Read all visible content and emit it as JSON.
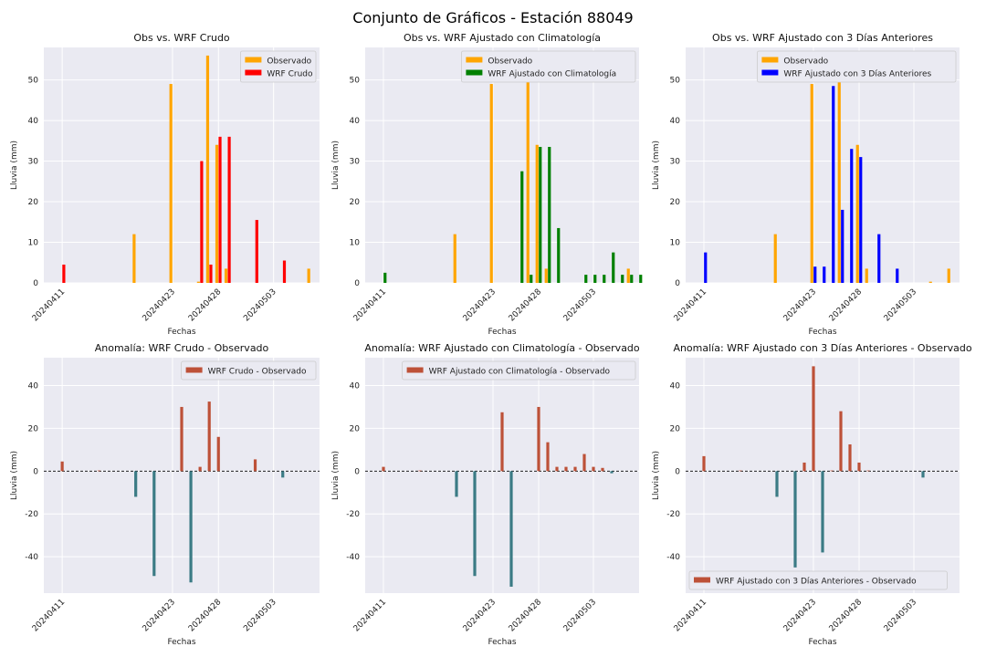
{
  "figure": {
    "title": "Conjunto de Gráficos - Estación 88049"
  },
  "colors": {
    "background": "#eaeaf2",
    "grid": "#ffffff",
    "observado": "#ffa500",
    "crudo": "#ff0000",
    "climatologia": "#008000",
    "tres_dias": "#0000ff",
    "anomaly_positive": "#bd5138",
    "anomaly_negative": "#3b7b85"
  },
  "chart_data": [
    {
      "type": "bar",
      "title": "Obs vs. WRF Crudo",
      "xlabel": "Fechas",
      "ylabel": "Lluvia (mm)",
      "ylim": [
        0,
        58
      ],
      "yticks": [
        0,
        10,
        20,
        30,
        40,
        50
      ],
      "xticks": [
        "20240411",
        "20240423",
        "20240428",
        "20240503"
      ],
      "legend_position": "upper right",
      "series": [
        {
          "name": "Observado",
          "color_key": "observado",
          "offset": -1,
          "points": [
            [
              "20240419",
              12
            ],
            [
              "20240423",
              49
            ],
            [
              "20240426",
              0.3
            ],
            [
              "20240427",
              56
            ],
            [
              "20240428",
              34
            ],
            [
              "20240429",
              3.5
            ],
            [
              "20240507",
              3.5
            ]
          ]
        },
        {
          "name": "WRF Crudo",
          "color_key": "crudo",
          "offset": 1,
          "points": [
            [
              "20240411",
              4.5
            ],
            [
              "20240426",
              30
            ],
            [
              "20240427",
              4.5
            ],
            [
              "20240428",
              36
            ],
            [
              "20240429",
              36
            ],
            [
              "20240501",
              15.5
            ],
            [
              "20240504",
              5.5
            ]
          ]
        }
      ]
    },
    {
      "type": "bar",
      "title": "Obs vs. WRF Ajustado con Climatología",
      "xlabel": "Fechas",
      "ylabel": "Lluvia (mm)",
      "ylim": [
        0,
        58
      ],
      "yticks": [
        0,
        10,
        20,
        30,
        40,
        50
      ],
      "xticks": [
        "20240411",
        "20240423",
        "20240428",
        "20240503"
      ],
      "legend_position": "upper right",
      "series": [
        {
          "name": "Observado",
          "color_key": "observado",
          "offset": -1,
          "points": [
            [
              "20240419",
              12
            ],
            [
              "20240423",
              49
            ],
            [
              "20240427",
              56
            ],
            [
              "20240428",
              34
            ],
            [
              "20240429",
              3.5
            ],
            [
              "20240507",
              3.5
            ]
          ]
        },
        {
          "name": "WRF Ajustado con Climatología",
          "color_key": "climatologia",
          "offset": 1,
          "points": [
            [
              "20240411",
              2.5
            ],
            [
              "20240426",
              27.5
            ],
            [
              "20240427",
              2
            ],
            [
              "20240428",
              33.5
            ],
            [
              "20240429",
              33.5
            ],
            [
              "20240430",
              13.5
            ],
            [
              "20240502",
              2
            ],
            [
              "20240503",
              2
            ],
            [
              "20240504",
              2
            ],
            [
              "20240505",
              7.5
            ],
            [
              "20240506",
              2
            ],
            [
              "20240507",
              2
            ],
            [
              "20240508",
              2
            ]
          ]
        }
      ]
    },
    {
      "type": "bar",
      "title": "Obs vs. WRF Ajustado con 3 Días Anteriores",
      "xlabel": "Fechas",
      "ylabel": "Lluvia (mm)",
      "ylim": [
        0,
        58
      ],
      "yticks": [
        0,
        10,
        20,
        30,
        40,
        50
      ],
      "xticks": [
        "20240411",
        "20240423",
        "20240428",
        "20240503"
      ],
      "legend_position": "upper right",
      "series": [
        {
          "name": "Observado",
          "color_key": "observado",
          "offset": -1,
          "points": [
            [
              "20240419",
              12
            ],
            [
              "20240423",
              49
            ],
            [
              "20240426",
              56
            ],
            [
              "20240428",
              34
            ],
            [
              "20240429",
              3.5
            ],
            [
              "20240505",
              0.3
            ],
            [
              "20240507",
              3.5
            ]
          ]
        },
        {
          "name": "WRF Ajustado con 3 Días Anteriores",
          "color_key": "tres_dias",
          "offset": 1,
          "points": [
            [
              "20240411",
              7.5
            ],
            [
              "20240423",
              4
            ],
            [
              "20240424",
              4
            ],
            [
              "20240425",
              48.5
            ],
            [
              "20240426",
              18
            ],
            [
              "20240427",
              33
            ],
            [
              "20240428",
              31
            ],
            [
              "20240430",
              12
            ],
            [
              "20240501",
              3.5
            ]
          ]
        }
      ]
    },
    {
      "type": "bar",
      "title": "Anomalía: WRF Crudo - Observado",
      "xlabel": "Fechas",
      "ylabel": "Lluvia (mm)",
      "ylim": [
        -57,
        53
      ],
      "yticks": [
        -40,
        -20,
        0,
        20,
        40
      ],
      "xticks": [
        "20240411",
        "20240423",
        "20240428",
        "20240503"
      ],
      "legend_position": "upper right",
      "zero_line": true,
      "series": [
        {
          "name": "WRF Crudo - Observado",
          "points": [
            [
              "20240411",
              4.5
            ],
            [
              "20240415",
              0.3
            ],
            [
              "20240419",
              -12
            ],
            [
              "20240421",
              -49
            ],
            [
              "20240424",
              30
            ],
            [
              "20240425",
              -52
            ],
            [
              "20240426",
              2
            ],
            [
              "20240427",
              32.5
            ],
            [
              "20240428",
              16
            ],
            [
              "20240432",
              5.5
            ],
            [
              "20240435",
              -3
            ]
          ]
        }
      ]
    },
    {
      "type": "bar",
      "title": "Anomalía: WRF Ajustado con Climatología - Observado",
      "xlabel": "Fechas",
      "ylabel": "Lluvia (mm)",
      "ylim": [
        -57,
        53
      ],
      "yticks": [
        -40,
        -20,
        0,
        20,
        40
      ],
      "xticks": [
        "20240411",
        "20240423",
        "20240428",
        "20240503"
      ],
      "legend_position": "upper right",
      "zero_line": true,
      "series": [
        {
          "name": "WRF Ajustado con Climatología - Observado",
          "points": [
            [
              "20240411",
              2
            ],
            [
              "20240415",
              0.3
            ],
            [
              "20240419",
              -12
            ],
            [
              "20240421",
              -49
            ],
            [
              "20240424",
              27.5
            ],
            [
              "20240425",
              -54
            ],
            [
              "20240428",
              30
            ],
            [
              "20240429",
              13.5
            ],
            [
              "20240430",
              2
            ],
            [
              "20240431",
              2
            ],
            [
              "20240432",
              2
            ],
            [
              "20240433",
              8
            ],
            [
              "20240434",
              2
            ],
            [
              "20240435",
              1.5
            ],
            [
              "20240436",
              -1
            ]
          ]
        }
      ]
    },
    {
      "type": "bar",
      "title": "Anomalía: WRF Ajustado con 3 Días Anteriores - Observado",
      "xlabel": "Fechas",
      "ylabel": "Lluvia (mm)",
      "ylim": [
        -57,
        53
      ],
      "yticks": [
        -40,
        -20,
        0,
        20,
        40
      ],
      "xticks": [
        "20240411",
        "20240423",
        "20240428",
        "20240503"
      ],
      "legend_position": "lower left",
      "zero_line": true,
      "series": [
        {
          "name": "WRF Ajustado con 3 Días Anteriores - Observado",
          "points": [
            [
              "20240411",
              7
            ],
            [
              "20240415",
              0.3
            ],
            [
              "20240419",
              -12
            ],
            [
              "20240421",
              -45
            ],
            [
              "20240422",
              4
            ],
            [
              "20240423",
              49
            ],
            [
              "20240424",
              -38
            ],
            [
              "20240425",
              0.3
            ],
            [
              "20240426",
              28
            ],
            [
              "20240427",
              12.5
            ],
            [
              "20240428",
              4
            ],
            [
              "20240429",
              0.3
            ],
            [
              "20240435",
              -3
            ]
          ]
        }
      ]
    }
  ]
}
